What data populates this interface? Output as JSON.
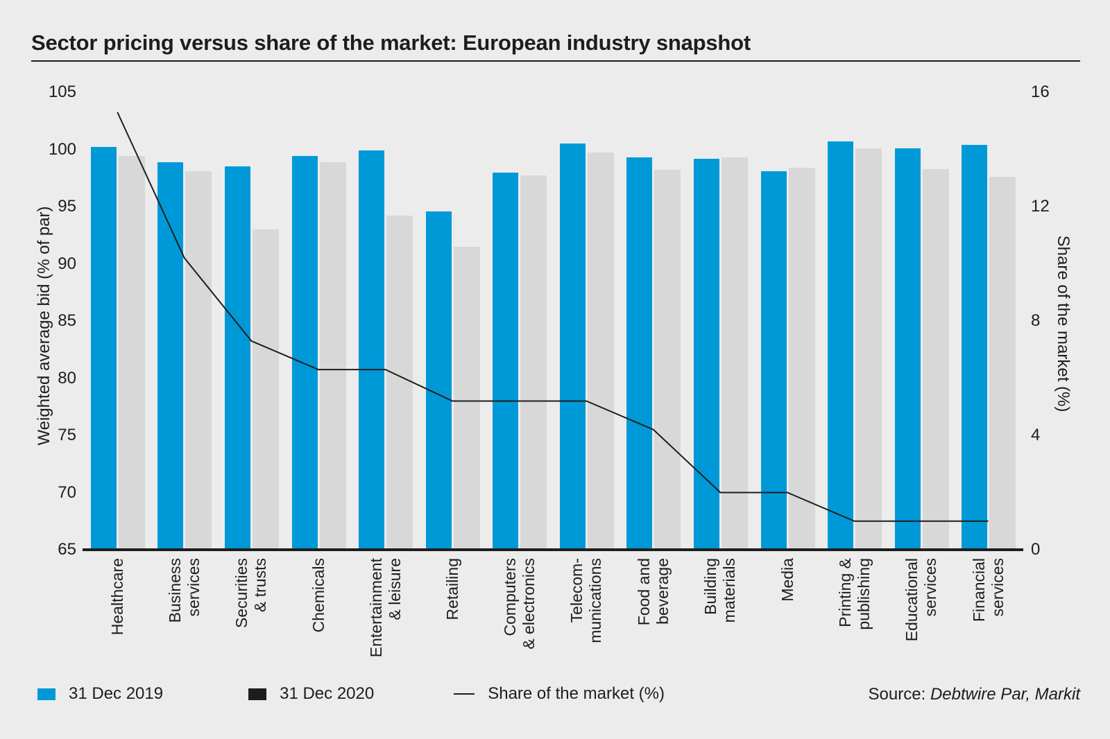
{
  "page": {
    "title": "Sector pricing versus share of the market: European industry snapshot"
  },
  "source": {
    "prefix": "Source: ",
    "name": "Debtwire Par, Markit"
  },
  "legend": {
    "items": [
      {
        "label": "31 Dec 2019",
        "type": "swatch",
        "color": "#0099d8"
      },
      {
        "label": "31 Dec 2020",
        "type": "swatch",
        "color": "#1d1d1b"
      },
      {
        "label": "Share of the market (%)",
        "type": "line",
        "color": "#1d1d1b"
      }
    ]
  },
  "chart_data": {
    "type": "bar",
    "subtype": "grouped bars with secondary-axis line overlay",
    "grid": false,
    "legend_position": "bottom-left",
    "background_color": "#ececec",
    "categories": [
      [
        "Healthcare"
      ],
      [
        "Business",
        "services"
      ],
      [
        "Securities",
        "& trusts"
      ],
      [
        "Chemicals"
      ],
      [
        "Entertainment",
        "& leisure"
      ],
      [
        "Retailing"
      ],
      [
        "Computers",
        "& electronics"
      ],
      [
        "Telecom-",
        "munications"
      ],
      [
        "Food and",
        "beverage"
      ],
      [
        "Building",
        "materials"
      ],
      [
        "Media"
      ],
      [
        "Printing &",
        "publishing"
      ],
      [
        "Educational",
        "services"
      ],
      [
        "Financial",
        "services"
      ]
    ],
    "series": [
      {
        "name": "31 Dec 2019",
        "type": "bar",
        "axis": "left",
        "color": "#0099d8",
        "values": [
          100.2,
          98.9,
          98.5,
          99.4,
          99.9,
          94.6,
          98.0,
          100.5,
          99.3,
          99.2,
          98.1,
          100.7,
          100.1,
          100.4
        ]
      },
      {
        "name": "31 Dec 2020",
        "type": "bar",
        "axis": "left",
        "color": "#d8d8d8",
        "legend_color": "#1d1d1b",
        "values": [
          99.4,
          98.1,
          93.0,
          98.9,
          94.2,
          91.5,
          97.7,
          99.7,
          98.2,
          99.3,
          98.4,
          100.1,
          98.3,
          97.6
        ]
      },
      {
        "name": "Share of the market (%)",
        "type": "line",
        "axis": "right",
        "color": "#1d1d1b",
        "values": [
          15.3,
          10.2,
          7.3,
          6.3,
          6.3,
          5.2,
          5.2,
          5.2,
          4.2,
          2.0,
          2.0,
          1.0,
          1.0,
          1.0
        ]
      }
    ],
    "left_axis": {
      "title": "Weighted average bid (% of par)",
      "min": 65,
      "max": 105,
      "ticks": [
        105,
        100,
        95,
        90,
        85,
        80,
        75,
        70,
        65
      ]
    },
    "right_axis": {
      "title": "Share of the market (%)",
      "min": 0,
      "max": 16,
      "ticks": [
        16,
        12,
        8,
        4,
        0
      ]
    }
  }
}
